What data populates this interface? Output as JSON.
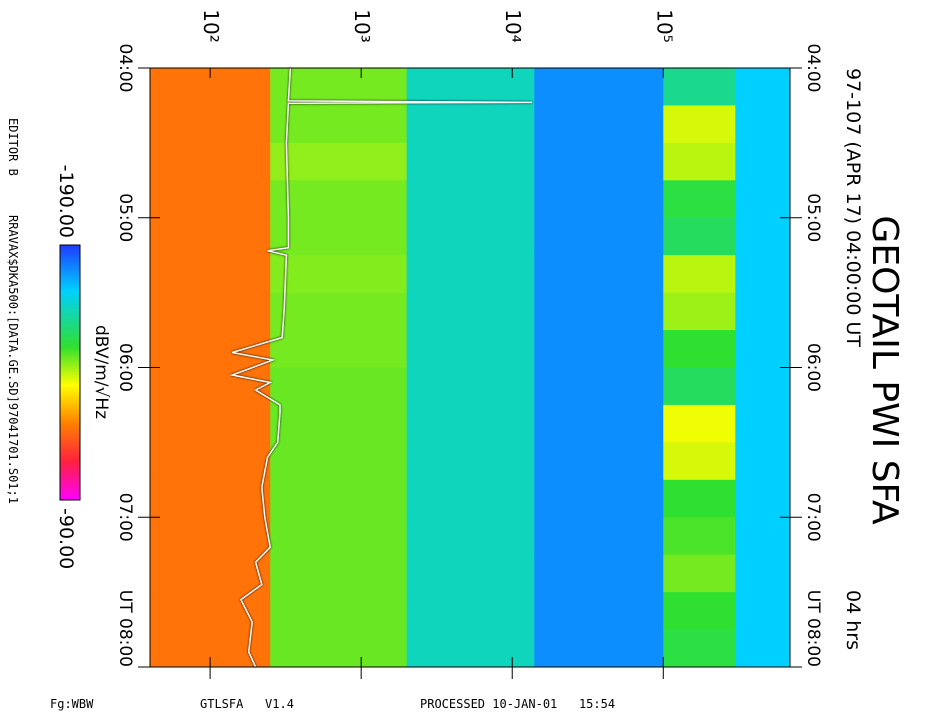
{
  "chart_data": {
    "type": "heatmap",
    "title": "GEOTAIL PWI SFA",
    "subtitle": "97-107 (APR 17) 04:00:00 UT",
    "duration": "04 hrs",
    "colorbar_label": "dBV/m/√Hz",
    "notes": [
      "EDITOR B",
      "RRAVAX$DKA500:[DATA.GE.SD]97041701.S01;1"
    ],
    "footer": [
      "Fg:WBW",
      "GTLSFA   V1.4",
      "PROCESSED 10-JAN-01   15:54"
    ],
    "log_x": true,
    "xlim": [
      40,
      690000
    ],
    "xticks": [
      {
        "value": 100,
        "label": "10²"
      },
      {
        "value": 1000,
        "label": "10³"
      },
      {
        "value": 10000,
        "label": "10⁴"
      },
      {
        "value": 100000,
        "label": "10⁵"
      }
    ],
    "ylim": [
      4,
      8
    ],
    "yticks": [
      {
        "value": 4,
        "label": "04:00"
      },
      {
        "value": 5,
        "label": "05:00"
      },
      {
        "value": 6,
        "label": "06:00"
      },
      {
        "value": 7,
        "label": "07:00"
      },
      {
        "value": 8,
        "label": "UT 08:00"
      }
    ],
    "zlim": [
      -190,
      -90
    ],
    "zticks": [
      {
        "value": -190,
        "label": "-190.00"
      },
      {
        "value": -90,
        "label": "-90.00"
      }
    ],
    "xbins": [
      40,
      250,
      2000,
      14000,
      100000,
      300000,
      690000
    ],
    "ybins": [
      4,
      4.25,
      4.5,
      4.75,
      5,
      5.25,
      5.5,
      5.75,
      6,
      6.25,
      6.5,
      6.75,
      7,
      7.25,
      7.5,
      7.75,
      8
    ],
    "values": [
      [
        -118,
        -145,
        -165,
        -180,
        -160,
        -172
      ],
      [
        -118,
        -145,
        -165,
        -180,
        -138,
        -172
      ],
      [
        -118,
        -143,
        -165,
        -180,
        -140,
        -172
      ],
      [
        -118,
        -145,
        -165,
        -180,
        -152,
        -172
      ],
      [
        -118,
        -145,
        -165,
        -180,
        -155,
        -172
      ],
      [
        -118,
        -144,
        -165,
        -180,
        -140,
        -172
      ],
      [
        -118,
        -145,
        -165,
        -180,
        -142,
        -172
      ],
      [
        -118,
        -145,
        -165,
        -180,
        -150,
        -172
      ],
      [
        -118,
        -146,
        -165,
        -180,
        -155,
        -172
      ],
      [
        -118,
        -146,
        -165,
        -180,
        -136,
        -172
      ],
      [
        -118,
        -146,
        -165,
        -180,
        -138,
        -172
      ],
      [
        -118,
        -146,
        -165,
        -180,
        -150,
        -172
      ],
      [
        -118,
        -146,
        -165,
        -180,
        -148,
        -172
      ],
      [
        -118,
        -146,
        -165,
        -180,
        -145,
        -172
      ],
      [
        -118,
        -146,
        -165,
        -180,
        -150,
        -172
      ],
      [
        -118,
        -146,
        -165,
        -180,
        -152,
        -172
      ]
    ],
    "trace": {
      "color": "#ffffff",
      "x": [
        340,
        330,
        13500,
        330,
        320,
        330,
        330,
        240,
        320,
        310,
        300,
        140,
        260,
        140,
        250,
        200,
        290,
        290,
        280,
        240,
        220,
        230,
        250,
        200,
        220,
        160,
        190,
        180,
        200
      ],
      "y": [
        4.0,
        4.22,
        4.23,
        4.235,
        4.5,
        5.0,
        5.2,
        5.22,
        5.25,
        5.6,
        5.8,
        5.9,
        5.95,
        6.05,
        6.1,
        6.15,
        6.25,
        6.3,
        6.5,
        6.6,
        6.8,
        7.0,
        7.2,
        7.3,
        7.45,
        7.55,
        7.7,
        7.9,
        8.0
      ]
    }
  }
}
